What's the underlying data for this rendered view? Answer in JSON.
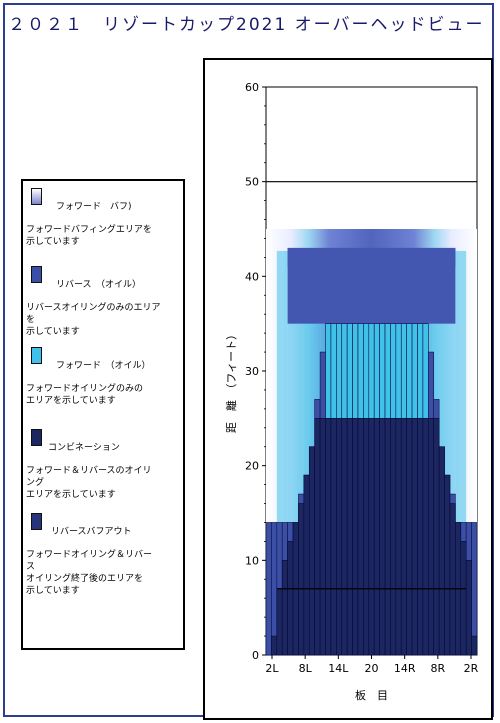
{
  "title": "２０２１　リゾートカップ2021 オーバーヘッドビュー",
  "legend": {
    "items": [
      {
        "name": "フォワード　バフ)",
        "desc": "フォワードバフィングエリアを\n示しています",
        "color": "#c9cdf0"
      },
      {
        "name": "リバース　（オイル）",
        "desc": "リバースオイリングのみのエリア\nを\n示しています",
        "color": "#3c4fa6"
      },
      {
        "name": "フォワード　（オイル）",
        "desc": "フォワードオイリングのみの\nエリアを示しています",
        "color": "#3fc1ea"
      },
      {
        "name": "コンビネーション",
        "desc": "フォワード＆リバースのオイリ\nング\nエリアを示しています",
        "color": "#1c2660"
      },
      {
        "name": "リバースバフアウト",
        "desc": "フォワードオイリング＆リバー\nス\nオイリング終了後のエリアを\n示しています",
        "color": "#27337a"
      }
    ]
  },
  "chart_data": {
    "type": "area",
    "xlabel": "板　目",
    "ylabel": "距　離　（フィート）",
    "x_ticks": [
      "2L",
      "8L",
      "14L",
      "20",
      "14R",
      "8R",
      "2R"
    ],
    "x_range": [
      1,
      39
    ],
    "ylim": [
      0,
      60
    ],
    "y_ticks": [
      0,
      10,
      20,
      30,
      40,
      50,
      60
    ],
    "hlines": [
      50
    ],
    "series": [
      {
        "name": "フォワード　バフ)",
        "color": "#c9cdf0",
        "boards": [
          1,
          39
        ],
        "bands": [
          [
            6,
            45
          ]
        ]
      },
      {
        "name": "フォワード　（オイル）",
        "color": "#3fc1ea",
        "boards": [
          1,
          39
        ],
        "bands": [
          [
            0,
            43
          ]
        ]
      },
      {
        "name": "リバース　（オイル）",
        "color": "#3c4fa6",
        "boards": [
          1,
          39
        ],
        "values": [
          14,
          14,
          14,
          14,
          14,
          14,
          17,
          19,
          22,
          27,
          32,
          35,
          35,
          35,
          35,
          35,
          35,
          35,
          35,
          35,
          35,
          35,
          35,
          35,
          35,
          35,
          35,
          35,
          35,
          35,
          32,
          27,
          22,
          19,
          17,
          14,
          14,
          14,
          14
        ]
      },
      {
        "name": "コンビネーション",
        "color": "#1c2660",
        "boards": [
          1,
          39
        ],
        "values": [
          0,
          2,
          7,
          10,
          12,
          14,
          16,
          19,
          22,
          25,
          25,
          25,
          25,
          25,
          25,
          25,
          25,
          25,
          25,
          25,
          25,
          25,
          25,
          25,
          25,
          25,
          25,
          25,
          25,
          25,
          25,
          25,
          22,
          19,
          16,
          14,
          12,
          10,
          2
        ]
      },
      {
        "name": "リバースバフアウト",
        "color": "#27337a",
        "boards": [
          3,
          37
        ],
        "bands": [
          [
            0,
            7
          ]
        ]
      }
    ],
    "oil_top": 43,
    "oil_top_boards": [
      5,
      35
    ]
  }
}
